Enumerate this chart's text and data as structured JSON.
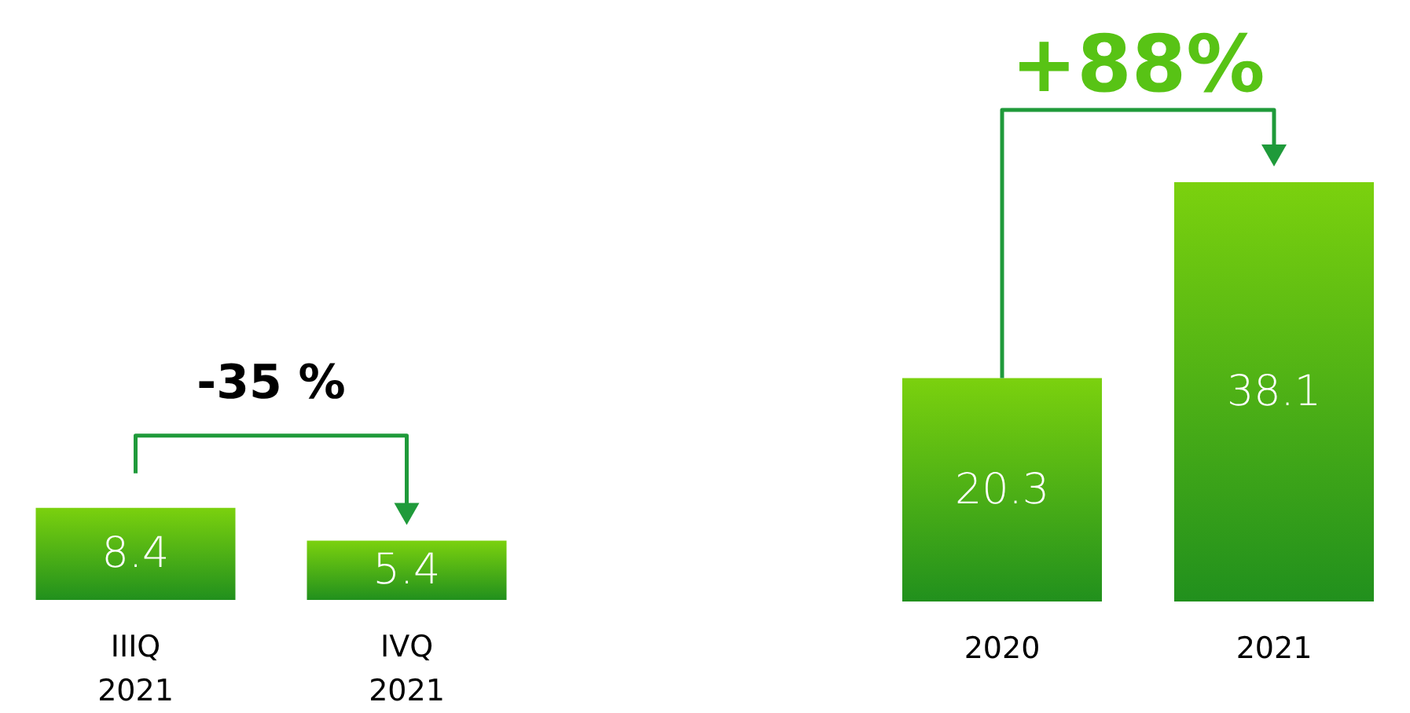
{
  "chart_data": [
    {
      "type": "bar",
      "categories": [
        "IIIQ\n2021",
        "IVQ\n2021"
      ],
      "values": [
        8.4,
        5.4
      ],
      "color": "#3cb81a",
      "data_labels": true,
      "annotations": [
        "-35 %"
      ]
    },
    {
      "type": "bar",
      "categories": [
        "2020",
        "2021"
      ],
      "values": [
        20.3,
        38.1
      ],
      "color": "#3cb81a",
      "data_labels": true,
      "annotations": [
        "+88%"
      ]
    }
  ]
}
